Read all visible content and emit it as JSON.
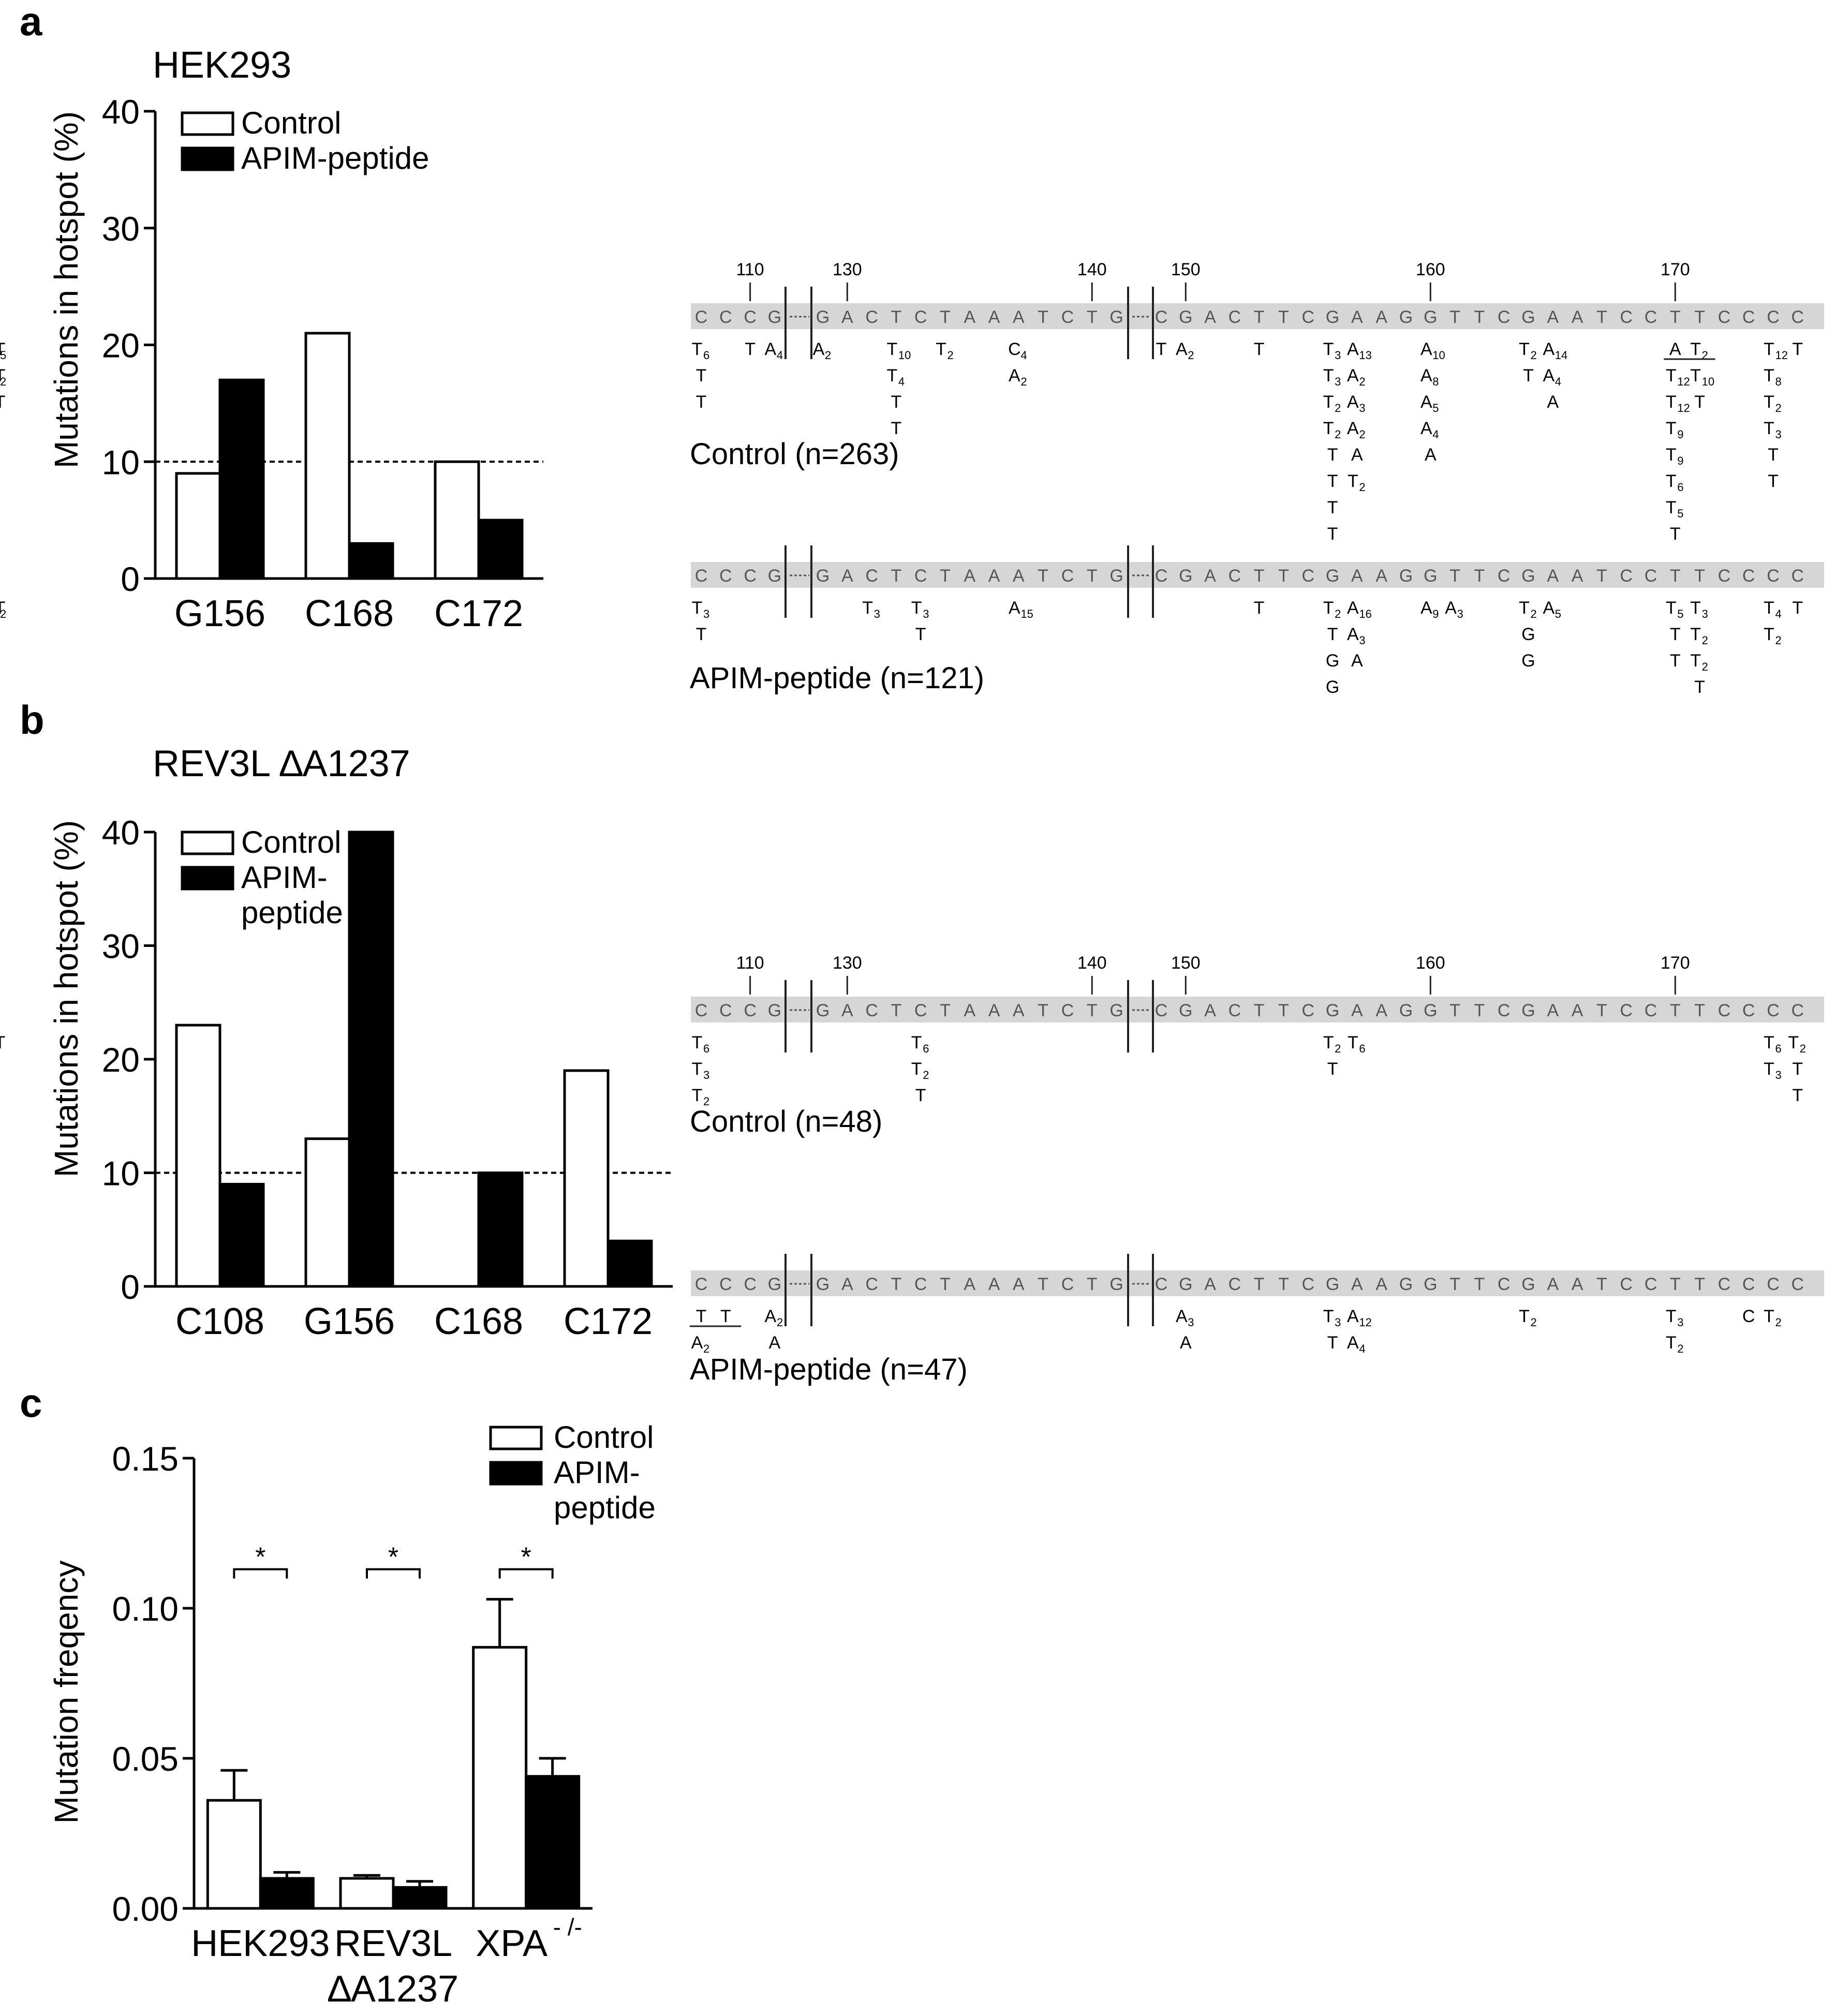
{
  "panels": {
    "a": {
      "letter": "a",
      "cell_line": "HEK293"
    },
    "b": {
      "letter": "b",
      "cell_line": "REV3L ∆A1237"
    },
    "c": {
      "letter": "c"
    }
  },
  "legend": {
    "control": "Control",
    "apim": "APIM-peptide",
    "apim_line1": "APIM-",
    "apim_line2": "peptide"
  },
  "chart_data": [
    {
      "id": "a",
      "type": "bar",
      "ylabel": "Mutations in hotspot (%)",
      "ylim": [
        0,
        40
      ],
      "yticks": [
        "0",
        "10",
        "20",
        "30",
        "40"
      ],
      "categories": [
        "G156",
        "C168",
        "C172"
      ],
      "series": [
        {
          "name": "Control",
          "values": [
            9,
            21,
            10
          ],
          "color": "#ffffff"
        },
        {
          "name": "APIM-peptide",
          "values": [
            17,
            3,
            5
          ],
          "color": "#000000"
        }
      ],
      "reference_line": 10,
      "legend_position": "top-left"
    },
    {
      "id": "b",
      "type": "bar",
      "ylabel": "Mutations in hotspot (%)",
      "ylim": [
        0,
        40
      ],
      "yticks": [
        "0",
        "10",
        "20",
        "30",
        "40"
      ],
      "categories": [
        "C108",
        "G156",
        "C168",
        "C172"
      ],
      "series": [
        {
          "name": "Control",
          "values": [
            23,
            13,
            0,
            19
          ],
          "color": "#ffffff"
        },
        {
          "name": "APIM-peptide",
          "values": [
            9,
            40,
            10,
            4
          ],
          "color": "#000000"
        }
      ],
      "reference_line": 10,
      "legend_position": "top-left"
    },
    {
      "id": "c",
      "type": "bar",
      "ylabel": "Mutation freqency",
      "ylim": [
        0,
        0.15
      ],
      "yticks": [
        "0.00",
        "0.05",
        "0.10",
        "0.15"
      ],
      "categories": [
        "HEK293",
        "REV3L",
        "XPA"
      ],
      "category_line2": [
        "",
        "∆A1237",
        ""
      ],
      "xpa_superscript": "- /-",
      "series": [
        {
          "name": "Control",
          "values": [
            0.036,
            0.01,
            0.087
          ],
          "errors": [
            0.01,
            0.001,
            0.016
          ],
          "color": "#ffffff"
        },
        {
          "name": "APIM-peptide",
          "values": [
            0.01,
            0.007,
            0.044
          ],
          "errors": [
            0.002,
            0.002,
            0.006
          ],
          "color": "#000000"
        }
      ],
      "significance": [
        "*",
        "*",
        "*"
      ],
      "legend_position": "top-right"
    }
  ],
  "sequence": {
    "seg1": [
      "C",
      "C",
      "C",
      "G"
    ],
    "seg2": [
      "G",
      "A",
      "C",
      "T",
      "C",
      "T",
      "A",
      "A",
      "A",
      "T",
      "C",
      "T",
      "G"
    ],
    "seg3": [
      "C",
      "G",
      "A",
      "C",
      "T",
      "T",
      "C",
      "G",
      "A",
      "A",
      "G",
      "G",
      "T",
      "T",
      "C",
      "G",
      "A",
      "A",
      "T",
      "C",
      "C",
      "T",
      "T",
      "C",
      "C",
      "C",
      "C"
    ],
    "positions": [
      "110",
      "130",
      "140",
      "150",
      "160",
      "170"
    ]
  },
  "seq_panels": [
    {
      "id": "a-control",
      "label": "Control (n=263)",
      "columns": [
        {
          "pos": "s1-0",
          "entries": [
            [
              "T",
              "6"
            ],
            [
              "T",
              ""
            ],
            [
              "T",
              ""
            ]
          ]
        },
        {
          "pos": "s1-2",
          "entries": [
            [
              "T",
              ""
            ]
          ]
        },
        {
          "pos": "s1-3",
          "entries": [
            [
              "A",
              "4"
            ]
          ]
        },
        {
          "pos": "s2-0",
          "entries": [
            [
              "A",
              "2"
            ]
          ]
        },
        {
          "pos": "s2-3",
          "entries": [
            [
              "T",
              "10"
            ],
            [
              "T",
              "4"
            ],
            [
              "T",
              ""
            ],
            [
              "T",
              ""
            ]
          ]
        },
        {
          "pos": "s2-5",
          "entries": [
            [
              "T",
              "2"
            ]
          ]
        },
        {
          "pos": "s2-8",
          "entries": [
            [
              "C",
              "4"
            ],
            [
              "A",
              "2"
            ]
          ]
        },
        {
          "pos": "s3-0",
          "entries": [
            [
              "T",
              ""
            ]
          ]
        },
        {
          "pos": "s3-1",
          "entries": [
            [
              "A",
              "2"
            ]
          ]
        },
        {
          "pos": "s3-4",
          "entries": [
            [
              "T",
              ""
            ]
          ]
        },
        {
          "pos": "s3-7",
          "entries": [
            [
              "T",
              "3"
            ],
            [
              "T",
              "3"
            ],
            [
              "T",
              "2"
            ],
            [
              "T",
              "2"
            ],
            [
              "T",
              ""
            ],
            [
              "T",
              ""
            ],
            [
              "T",
              ""
            ],
            [
              "T",
              ""
            ]
          ]
        },
        {
          "pos": "s3-8",
          "entries": [
            [
              "A",
              "13"
            ],
            [
              "A",
              "2"
            ],
            [
              "A",
              "3"
            ],
            [
              "A",
              "2"
            ],
            [
              "A",
              ""
            ],
            [
              "T",
              "2"
            ]
          ]
        },
        {
          "pos": "s3-11",
          "entries": [
            [
              "A",
              "10"
            ],
            [
              "A",
              "8"
            ],
            [
              "A",
              "5"
            ],
            [
              "A",
              "4"
            ],
            [
              "A",
              ""
            ]
          ]
        },
        {
          "pos": "s3-15",
          "entries": [
            [
              "T",
              "2"
            ],
            [
              "T",
              ""
            ]
          ]
        },
        {
          "pos": "s3-16",
          "entries": [
            [
              "A",
              "14"
            ],
            [
              "A",
              "4"
            ],
            [
              "A",
              ""
            ]
          ]
        },
        {
          "pos": "s3-21",
          "entries": [
            [
              "A",
              ""
            ],
            [
              "T",
              "12"
            ],
            [
              "T",
              "12"
            ],
            [
              "T",
              "9"
            ],
            [
              "T",
              "9"
            ],
            [
              "T",
              "6"
            ],
            [
              "T",
              "5"
            ],
            [
              "T",
              ""
            ]
          ]
        },
        {
          "pos": "s3-22",
          "entries": [
            [
              "T",
              "2"
            ],
            [
              "T",
              "10"
            ],
            [
              "T",
              ""
            ]
          ]
        },
        {
          "pos": "s3-25",
          "entries": [
            [
              "T",
              "12"
            ],
            [
              "T",
              "8"
            ],
            [
              "T",
              "2"
            ],
            [
              "T",
              "3"
            ],
            [
              "T",
              ""
            ],
            [
              "T",
              ""
            ]
          ]
        },
        {
          "pos": "s3-26",
          "entries": [
            [
              "T",
              ""
            ]
          ]
        },
        {
          "pos": "s3-27",
          "entries": [
            [
              "T",
              ""
            ],
            [
              "T",
              ""
            ],
            [
              "T",
              ""
            ]
          ]
        },
        {
          "pos": "s3-28",
          "entries": [
            [
              "T",
              "5"
            ],
            [
              "T",
              "2"
            ],
            [
              "T",
              ""
            ]
          ]
        }
      ],
      "underlines": [
        [
          "s3-21",
          "s3-22",
          0
        ],
        [
          "s3-27",
          "s3-28",
          0
        ],
        [
          "s3-27",
          "s3-28",
          1
        ]
      ]
    },
    {
      "id": "a-apim",
      "label": "APIM-peptide (n=121)",
      "columns": [
        {
          "pos": "s1-0",
          "entries": [
            [
              "T",
              "3"
            ],
            [
              "T",
              ""
            ]
          ]
        },
        {
          "pos": "s2-2",
          "entries": [
            [
              "T",
              "3"
            ]
          ]
        },
        {
          "pos": "s2-4",
          "entries": [
            [
              "T",
              "3"
            ],
            [
              "T",
              ""
            ]
          ]
        },
        {
          "pos": "s2-8",
          "entries": [
            [
              "A",
              "15"
            ]
          ]
        },
        {
          "pos": "s3-4",
          "entries": [
            [
              "T",
              ""
            ]
          ]
        },
        {
          "pos": "s3-7",
          "entries": [
            [
              "T",
              "2"
            ],
            [
              "T",
              ""
            ],
            [
              "G",
              ""
            ],
            [
              "G",
              ""
            ]
          ]
        },
        {
          "pos": "s3-8",
          "entries": [
            [
              "A",
              "16"
            ],
            [
              "A",
              "3"
            ],
            [
              "A",
              ""
            ]
          ]
        },
        {
          "pos": "s3-11",
          "entries": [
            [
              "A",
              "9"
            ]
          ]
        },
        {
          "pos": "s3-12",
          "entries": [
            [
              "A",
              "3"
            ]
          ]
        },
        {
          "pos": "s3-15",
          "entries": [
            [
              "T",
              "2"
            ],
            [
              "G",
              ""
            ],
            [
              "G",
              ""
            ]
          ]
        },
        {
          "pos": "s3-16",
          "entries": [
            [
              "A",
              "5"
            ]
          ]
        },
        {
          "pos": "s3-21",
          "entries": [
            [
              "T",
              "5"
            ],
            [
              "T",
              ""
            ],
            [
              "T",
              ""
            ]
          ]
        },
        {
          "pos": "s3-22",
          "entries": [
            [
              "T",
              "3"
            ],
            [
              "T",
              "2"
            ],
            [
              "T",
              "2"
            ],
            [
              "T",
              ""
            ]
          ]
        },
        {
          "pos": "s3-25",
          "entries": [
            [
              "T",
              "4"
            ],
            [
              "T",
              "2"
            ]
          ]
        },
        {
          "pos": "s3-26",
          "entries": [
            [
              "T",
              ""
            ]
          ]
        },
        {
          "pos": "s3-27",
          "entries": [
            [
              "T",
              "2"
            ]
          ]
        }
      ],
      "underlines": []
    },
    {
      "id": "b-control",
      "label": "Control (n=48)",
      "columns": [
        {
          "pos": "s1-0",
          "entries": [
            [
              "T",
              "6"
            ],
            [
              "T",
              "3"
            ],
            [
              "T",
              "2"
            ]
          ]
        },
        {
          "pos": "s2-4",
          "entries": [
            [
              "T",
              "6"
            ],
            [
              "T",
              "2"
            ],
            [
              "T",
              ""
            ]
          ]
        },
        {
          "pos": "s3-7",
          "entries": [
            [
              "T",
              "2"
            ],
            [
              "T",
              ""
            ]
          ]
        },
        {
          "pos": "s3-8",
          "entries": [
            [
              "T",
              "6"
            ]
          ]
        },
        {
          "pos": "s3-25",
          "entries": [
            [
              "T",
              "6"
            ],
            [
              "T",
              "3"
            ]
          ]
        },
        {
          "pos": "s3-26",
          "entries": [
            [
              "T",
              "2"
            ],
            [
              "T",
              ""
            ],
            [
              "T",
              ""
            ]
          ]
        },
        {
          "pos": "s3-27",
          "entries": [
            [
              "T",
              ""
            ]
          ]
        }
      ],
      "underlines": []
    },
    {
      "id": "b-apim",
      "label": "APIM-peptide (n=47)",
      "columns": [
        {
          "pos": "s1-0",
          "entries": [
            [
              "T",
              ""
            ],
            [
              "A",
              "2"
            ]
          ]
        },
        {
          "pos": "s1-1",
          "entries": [
            [
              "T",
              ""
            ]
          ]
        },
        {
          "pos": "s1-3",
          "entries": [
            [
              "A",
              "2"
            ],
            [
              "A",
              ""
            ]
          ]
        },
        {
          "pos": "s3-1",
          "entries": [
            [
              "A",
              "3"
            ],
            [
              "A",
              ""
            ]
          ]
        },
        {
          "pos": "s3-7",
          "entries": [
            [
              "T",
              "3"
            ],
            [
              "T",
              ""
            ]
          ]
        },
        {
          "pos": "s3-8",
          "entries": [
            [
              "A",
              "12"
            ],
            [
              "A",
              "4"
            ]
          ]
        },
        {
          "pos": "s3-15",
          "entries": [
            [
              "T",
              "2"
            ]
          ]
        },
        {
          "pos": "s3-21",
          "entries": [
            [
              "T",
              "3"
            ],
            [
              "T",
              "2"
            ]
          ]
        },
        {
          "pos": "s3-24",
          "entries": [
            [
              "C",
              ""
            ]
          ]
        },
        {
          "pos": "s3-25",
          "entries": [
            [
              "T",
              "2"
            ]
          ]
        }
      ],
      "underlines": [
        [
          "s1-0",
          "s1-1",
          0
        ]
      ]
    }
  ]
}
